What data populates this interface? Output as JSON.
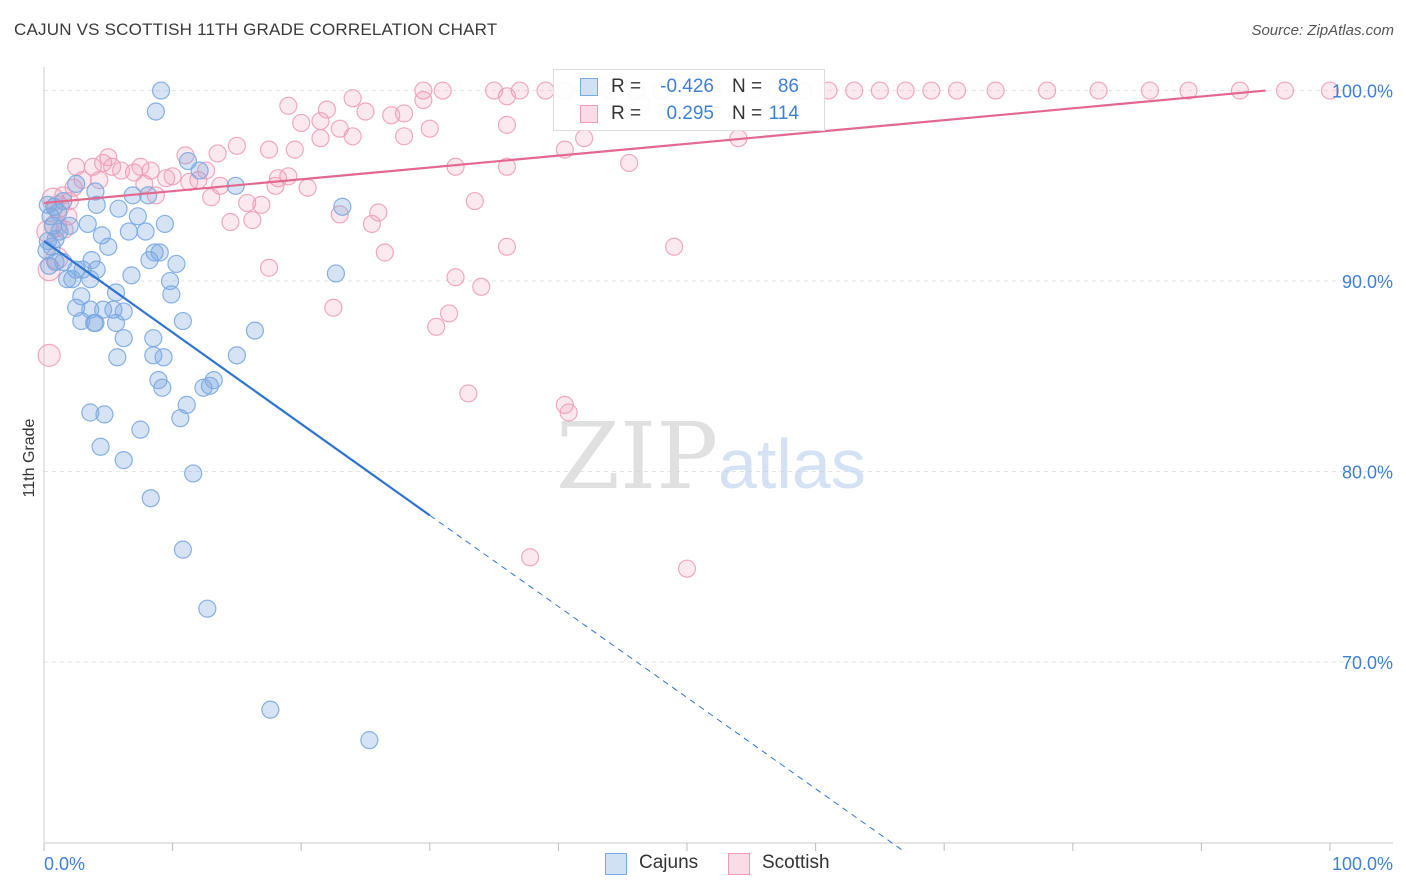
{
  "title": "CAJUN VS SCOTTISH 11TH GRADE CORRELATION CHART",
  "source": "Source: ZipAtlas.com",
  "watermark": {
    "zip": "ZIP",
    "atlas": "atlas"
  },
  "colors": {
    "blue": "#7ba8e0",
    "blue_fill": "rgba(123,168,224,0.32)",
    "blue_line": "#2f74d0",
    "pink": "#ef9ab4",
    "pink_fill": "rgba(239,154,180,0.22)",
    "pink_line": "#e2688f",
    "tick_label": "#3f7fd6",
    "grid": "#e3e3e3"
  },
  "legend": {
    "rows": [
      {
        "r_label": "R =",
        "r_value": "-0.426",
        "n_label": "N =",
        "n_value": "86"
      },
      {
        "r_label": "R =",
        "r_value": "0.295",
        "n_label": "N =",
        "n_value": "114"
      }
    ]
  },
  "bottom_legend": {
    "cajuns": "Cajuns",
    "scottish": "Scottish"
  },
  "chart_data": {
    "type": "scatter",
    "title": "CAJUN VS SCOTTISH 11TH GRADE CORRELATION CHART",
    "ylabel": "11th Grade",
    "xlabel": "",
    "xlim": [
      0,
      100
    ],
    "ylim": [
      60.5,
      101.5
    ],
    "x_tick_labels": [
      {
        "x": 0,
        "label": "0.0%"
      },
      {
        "x": 100,
        "label": "100.0%"
      }
    ],
    "y_tick_labels": [
      {
        "y": 100,
        "label": "100.0%"
      },
      {
        "y": 90,
        "label": "90.0%"
      },
      {
        "y": 80,
        "label": "80.0%"
      },
      {
        "y": 70,
        "label": "70.0%"
      }
    ],
    "grid": true,
    "legend_position": "top-center",
    "series": [
      {
        "name": "Cajuns",
        "color": "#7ba8e0",
        "R": -0.426,
        "N": 86,
        "trend": {
          "x0": 0,
          "y0": 92.1,
          "x1": 30,
          "y1": 77.7,
          "dashed_to_x": 67,
          "dashed_to_y": 60.0
        },
        "points": [
          [
            9.1,
            100.0
          ],
          [
            8.7,
            98.9
          ],
          [
            11.2,
            96.3
          ],
          [
            12.1,
            95.8
          ],
          [
            14.9,
            95.0
          ],
          [
            2.5,
            95.1
          ],
          [
            4.0,
            94.7
          ],
          [
            0.3,
            94.0
          ],
          [
            0.8,
            93.9
          ],
          [
            1.5,
            94.2
          ],
          [
            4.1,
            94.0
          ],
          [
            5.8,
            93.8
          ],
          [
            8.1,
            94.5
          ],
          [
            23.2,
            93.9
          ],
          [
            0.5,
            93.4
          ],
          [
            1.1,
            93.6
          ],
          [
            0.7,
            92.9
          ],
          [
            2.0,
            92.9
          ],
          [
            3.4,
            93.0
          ],
          [
            6.6,
            92.6
          ],
          [
            9.4,
            93.0
          ],
          [
            7.9,
            92.6
          ],
          [
            0.3,
            92.1
          ],
          [
            0.9,
            92.2
          ],
          [
            4.5,
            92.4
          ],
          [
            0.2,
            91.6
          ],
          [
            0.6,
            91.8
          ],
          [
            5.0,
            91.8
          ],
          [
            8.6,
            91.5
          ],
          [
            9.0,
            91.5
          ],
          [
            1.5,
            91.0
          ],
          [
            2.5,
            90.6
          ],
          [
            3.0,
            90.6
          ],
          [
            1.8,
            90.1
          ],
          [
            4.1,
            90.6
          ],
          [
            8.2,
            91.1
          ],
          [
            10.3,
            90.9
          ],
          [
            2.2,
            90.1
          ],
          [
            3.6,
            90.1
          ],
          [
            6.8,
            90.3
          ],
          [
            9.8,
            90.0
          ],
          [
            22.7,
            90.4
          ],
          [
            0.9,
            91.0
          ],
          [
            5.6,
            89.4
          ],
          [
            9.9,
            89.3
          ],
          [
            2.5,
            88.6
          ],
          [
            3.6,
            88.5
          ],
          [
            4.6,
            88.5
          ],
          [
            5.4,
            88.5
          ],
          [
            6.2,
            88.4
          ],
          [
            2.9,
            87.9
          ],
          [
            3.9,
            87.8
          ],
          [
            4.0,
            87.8
          ],
          [
            5.6,
            87.8
          ],
          [
            10.8,
            87.9
          ],
          [
            16.4,
            87.4
          ],
          [
            6.2,
            87.0
          ],
          [
            8.5,
            87.0
          ],
          [
            5.7,
            86.0
          ],
          [
            8.5,
            86.1
          ],
          [
            9.3,
            86.0
          ],
          [
            15.0,
            86.1
          ],
          [
            8.9,
            84.8
          ],
          [
            9.2,
            84.4
          ],
          [
            12.4,
            84.4
          ],
          [
            13.2,
            84.8
          ],
          [
            12.9,
            84.5
          ],
          [
            11.1,
            83.5
          ],
          [
            3.6,
            83.1
          ],
          [
            4.7,
            83.0
          ],
          [
            10.6,
            82.8
          ],
          [
            7.5,
            82.2
          ],
          [
            4.4,
            81.3
          ],
          [
            6.2,
            80.6
          ],
          [
            11.6,
            79.9
          ],
          [
            8.3,
            78.6
          ],
          [
            10.8,
            75.9
          ],
          [
            12.7,
            72.8
          ],
          [
            17.6,
            67.5
          ],
          [
            25.3,
            65.9
          ],
          [
            2.9,
            89.2
          ],
          [
            7.3,
            93.4
          ],
          [
            1.2,
            92.6
          ],
          [
            3.7,
            91.1
          ],
          [
            6.9,
            94.5
          ],
          [
            0.4,
            90.8
          ]
        ]
      },
      {
        "name": "Scottish",
        "color": "#ef9ab4",
        "R": 0.295,
        "N": 114,
        "trend": {
          "x0": 0,
          "y0": 94.1,
          "x1": 95,
          "y1": 100.0
        },
        "points": [
          [
            29.5,
            100.0
          ],
          [
            31.0,
            100.0
          ],
          [
            35.0,
            100.0
          ],
          [
            37.0,
            100.0
          ],
          [
            39.0,
            100.0
          ],
          [
            40.5,
            100.0
          ],
          [
            42.0,
            100.0
          ],
          [
            44.0,
            100.0
          ],
          [
            46.0,
            100.0
          ],
          [
            48.0,
            100.0
          ],
          [
            52.0,
            100.0
          ],
          [
            55.0,
            100.0
          ],
          [
            57.0,
            100.0
          ],
          [
            59.0,
            100.0
          ],
          [
            61.0,
            100.0
          ],
          [
            63.0,
            100.0
          ],
          [
            65.0,
            100.0
          ],
          [
            67.0,
            100.0
          ],
          [
            69.0,
            100.0
          ],
          [
            71.0,
            100.0
          ],
          [
            74.0,
            100.0
          ],
          [
            78.0,
            100.0
          ],
          [
            82.0,
            100.0
          ],
          [
            86.0,
            100.0
          ],
          [
            89.0,
            100.0
          ],
          [
            93.0,
            100.0
          ],
          [
            96.5,
            100.0
          ],
          [
            100.0,
            100.0
          ],
          [
            36.0,
            99.7
          ],
          [
            29.5,
            99.5
          ],
          [
            24.0,
            99.6
          ],
          [
            22.0,
            99.0
          ],
          [
            19.0,
            99.2
          ],
          [
            25.0,
            98.9
          ],
          [
            27.0,
            98.7
          ],
          [
            28.0,
            98.8
          ],
          [
            21.5,
            98.4
          ],
          [
            20.0,
            98.3
          ],
          [
            23.0,
            98.0
          ],
          [
            30.0,
            98.0
          ],
          [
            36.0,
            98.2
          ],
          [
            28.0,
            97.6
          ],
          [
            24.0,
            97.6
          ],
          [
            21.5,
            97.5
          ],
          [
            42.0,
            97.5
          ],
          [
            15.0,
            97.1
          ],
          [
            13.5,
            96.7
          ],
          [
            11.0,
            96.6
          ],
          [
            17.5,
            96.9
          ],
          [
            19.5,
            96.9
          ],
          [
            2.5,
            96.0
          ],
          [
            3.8,
            96.0
          ],
          [
            4.6,
            96.2
          ],
          [
            5.3,
            96.0
          ],
          [
            6.0,
            95.8
          ],
          [
            7.0,
            95.7
          ],
          [
            8.3,
            95.8
          ],
          [
            9.5,
            95.4
          ],
          [
            10.0,
            95.5
          ],
          [
            11.3,
            95.2
          ],
          [
            12.0,
            95.3
          ],
          [
            12.6,
            95.8
          ],
          [
            13.7,
            95.0
          ],
          [
            18.2,
            95.4
          ],
          [
            19.0,
            95.5
          ],
          [
            32.0,
            96.0
          ],
          [
            36.0,
            96.0
          ],
          [
            45.5,
            96.2
          ],
          [
            20.5,
            94.9
          ],
          [
            7.8,
            95.1
          ],
          [
            4.3,
            95.3
          ],
          [
            3.0,
            95.3
          ],
          [
            1.5,
            94.5
          ],
          [
            2.0,
            94.2
          ],
          [
            8.7,
            94.5
          ],
          [
            15.8,
            94.1
          ],
          [
            16.9,
            94.0
          ],
          [
            13.0,
            94.4
          ],
          [
            1.1,
            93.9
          ],
          [
            1.9,
            93.4
          ],
          [
            16.2,
            93.2
          ],
          [
            23.0,
            93.5
          ],
          [
            25.5,
            93.0
          ],
          [
            26.0,
            93.6
          ],
          [
            33.5,
            94.2
          ],
          [
            14.5,
            93.1
          ],
          [
            0.9,
            92.9
          ],
          [
            1.6,
            92.7
          ],
          [
            0.3,
            92.6
          ],
          [
            36.0,
            91.8
          ],
          [
            49.0,
            91.8
          ],
          [
            26.5,
            91.5
          ],
          [
            1.0,
            91.2
          ],
          [
            0.4,
            90.6
          ],
          [
            17.5,
            90.7
          ],
          [
            32.0,
            90.2
          ],
          [
            34.0,
            89.7
          ],
          [
            22.5,
            88.6
          ],
          [
            31.5,
            88.3
          ],
          [
            30.5,
            87.6
          ],
          [
            0.4,
            86.1
          ],
          [
            33.0,
            84.1
          ],
          [
            40.5,
            83.5
          ],
          [
            40.8,
            83.1
          ],
          [
            37.8,
            75.5
          ],
          [
            50.0,
            74.9
          ],
          [
            7.5,
            96.0
          ],
          [
            5.0,
            96.5
          ],
          [
            18.0,
            95.0
          ],
          [
            0.7,
            94.3
          ],
          [
            2.3,
            94.9
          ],
          [
            40.5,
            96.9
          ],
          [
            54.0,
            97.5
          ],
          [
            46.5,
            99.3
          ]
        ]
      }
    ]
  }
}
